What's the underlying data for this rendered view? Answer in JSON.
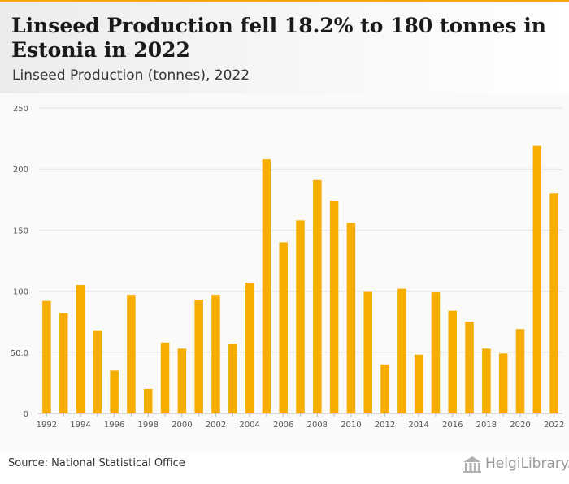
{
  "header": {
    "title": "Linseed Production fell 18.2% to 180 tonnes in Estonia in 2022",
    "subtitle": "Linseed Production (tonnes), 2022"
  },
  "footer": {
    "source": "Source: National Statistical Office",
    "logo_text": "HelgiLibrary."
  },
  "colors": {
    "bar": "#f5ad00",
    "accent": "#f2a900",
    "grid": "#e3e3e3"
  },
  "chart_data": {
    "type": "bar",
    "title": "Linseed Production fell 18.2% to 180 tonnes in Estonia in 2022",
    "subtitle": "Linseed Production (tonnes), 2022",
    "xlabel": "",
    "ylabel": "",
    "categories": [
      "1992",
      "1993",
      "1994",
      "1995",
      "1996",
      "1997",
      "1998",
      "1999",
      "2000",
      "2001",
      "2002",
      "2003",
      "2004",
      "2005",
      "2006",
      "2007",
      "2008",
      "2009",
      "2010",
      "2011",
      "2012",
      "2013",
      "2014",
      "2015",
      "2016",
      "2017",
      "2018",
      "2019",
      "2020",
      "2021",
      "2022"
    ],
    "values": [
      92,
      82,
      105,
      68,
      35,
      97,
      20,
      58,
      53,
      93,
      97,
      57,
      107,
      208,
      140,
      158,
      191,
      174,
      156,
      100,
      40,
      102,
      48,
      99,
      84,
      75,
      53,
      49,
      69,
      219,
      180
    ],
    "x_tick_labels": [
      "1992",
      "1994",
      "1996",
      "1998",
      "2000",
      "2002",
      "2004",
      "2006",
      "2008",
      "2010",
      "2012",
      "2014",
      "2016",
      "2018",
      "2020",
      "2022"
    ],
    "y_ticks": [
      0,
      50,
      100,
      150,
      200,
      250
    ],
    "y_tick_labels": [
      "0",
      "50.0",
      "100",
      "150",
      "200",
      "250"
    ],
    "ylim": [
      0,
      250
    ],
    "grid": true,
    "legend": "none"
  }
}
